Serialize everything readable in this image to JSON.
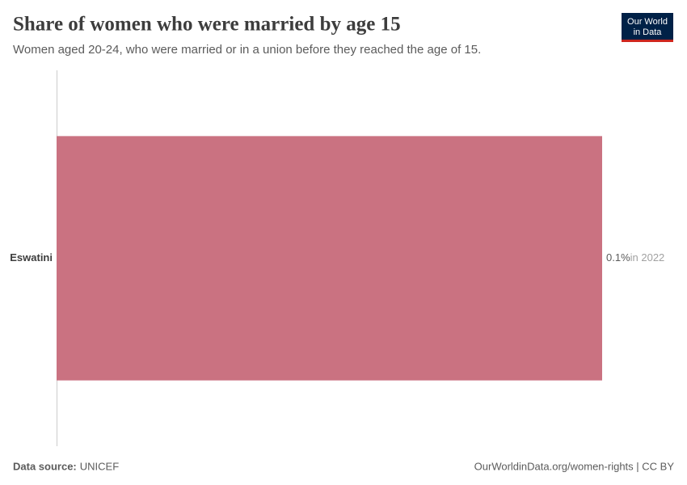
{
  "chart_data": {
    "type": "bar",
    "orientation": "horizontal",
    "title": "Share of women who were married by age 15",
    "subtitle": "Women aged 20-24, who were married or in a union before they reached the age of 15.",
    "categories": [
      "Eswatini"
    ],
    "values": [
      0.1
    ],
    "value_labels": [
      "0.1%"
    ],
    "annotations": [
      "in 2022"
    ],
    "color": "#ca7281",
    "xlim": [
      0,
      0.1
    ],
    "source_label": "Data source:",
    "source": "UNICEF",
    "footer_right": "OurWorldinData.org/women-rights | CC BY",
    "logo": [
      "Our World",
      "in Data"
    ]
  }
}
